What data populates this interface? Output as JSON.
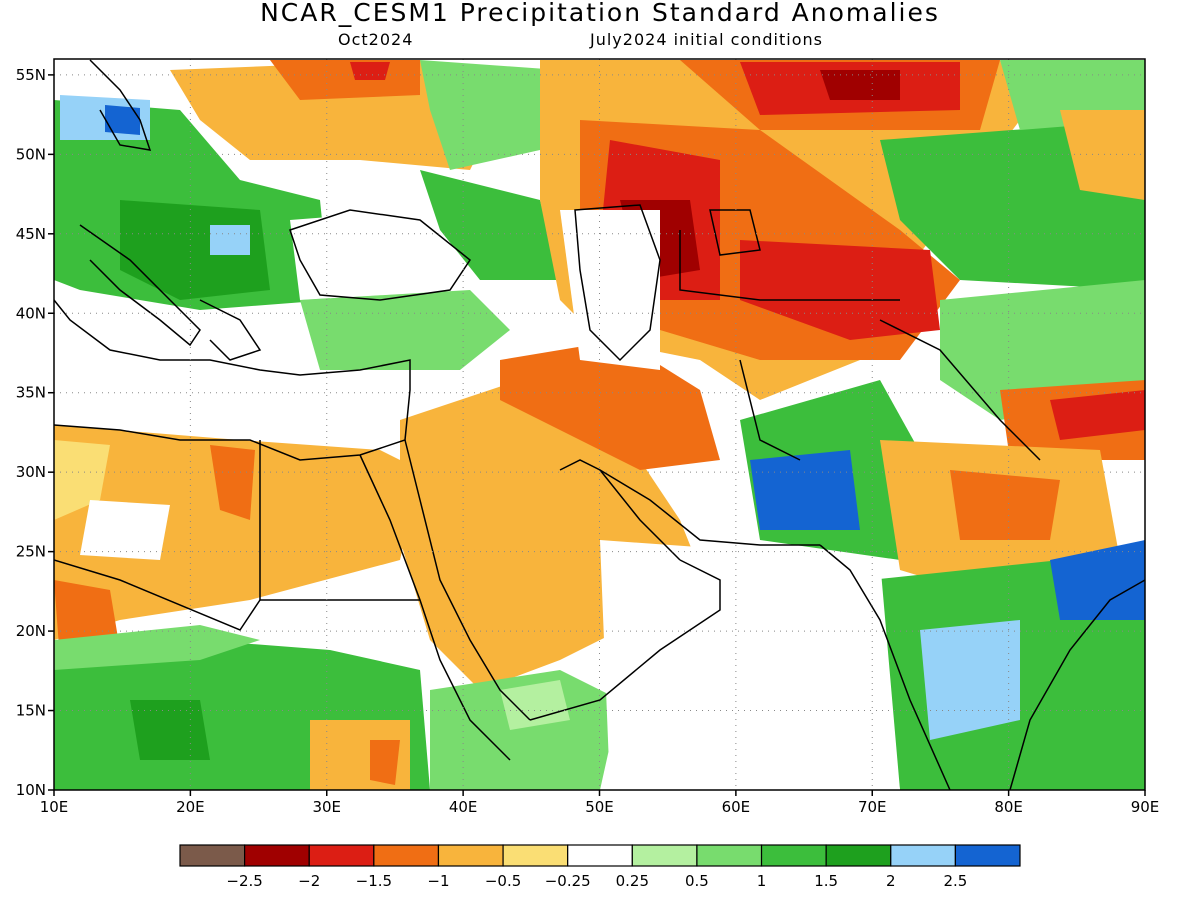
{
  "title": "NCAR_CESM1 Precipitation Standard Anomalies",
  "subtitle_left": "Oct2024",
  "subtitle_right": "July2024 initial conditions",
  "map": {
    "lon_range": [
      10,
      90
    ],
    "lat_range": [
      10,
      56
    ],
    "lon_ticks": [
      "10E",
      "20E",
      "30E",
      "40E",
      "50E",
      "60E",
      "70E",
      "80E",
      "90E"
    ],
    "lat_ticks": [
      "10N",
      "15N",
      "20N",
      "25N",
      "30N",
      "35N",
      "40N",
      "45N",
      "50N",
      "55N"
    ]
  },
  "colorbar": {
    "colors": [
      "#7b5a4a",
      "#a00000",
      "#dc1e14",
      "#f06e14",
      "#f8b43c",
      "#fade74",
      "#ffffff",
      "#b4f0a0",
      "#78dc6e",
      "#3cbe3c",
      "#1ea01e",
      "#96d2f8",
      "#1464d2"
    ],
    "labels": [
      "−2.5",
      "−2",
      "−1.5",
      "−1",
      "−0.5",
      "−0.25",
      "0.25",
      "0.5",
      "1",
      "1.5",
      "2",
      "2.5"
    ]
  },
  "colors": {
    "dry_extreme": "#a00000",
    "dry_strong": "#dc1e14",
    "dry_moderate": "#f06e14",
    "dry_light": "#f8b43c",
    "dry_slight": "#fade74",
    "wet_slight": "#b4f0a0",
    "wet_light": "#78dc6e",
    "wet_moderate": "#3cbe3c",
    "wet_strong": "#1ea01e",
    "wet_high": "#96d2f8",
    "wet_extreme": "#1464d2"
  }
}
